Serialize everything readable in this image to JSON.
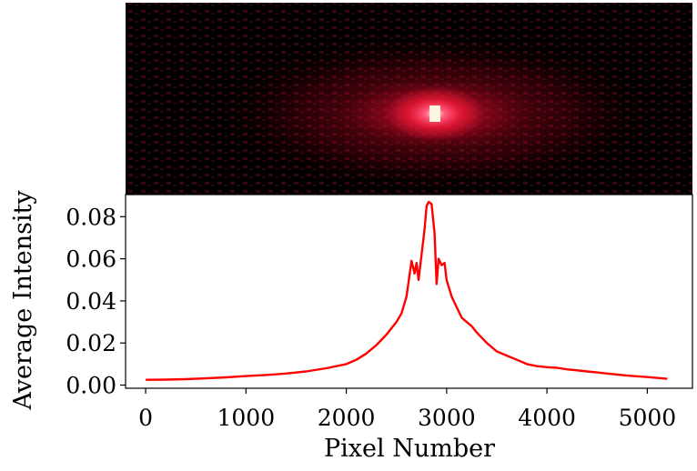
{
  "chart_data": [
    {
      "type": "image",
      "description_colormap": "black-to-red-to-white intensity",
      "colors": {
        "background": "#000000",
        "glow": "#ff1a3c",
        "center": "#fff4e0"
      }
    },
    {
      "type": "line",
      "xlabel": "Pixel Number",
      "ylabel": "Average Intensity",
      "xlim": [
        -200,
        5450
      ],
      "ylim": [
        -0.0015,
        0.0905
      ],
      "xticks": [
        0,
        1000,
        2000,
        3000,
        4000,
        5000
      ],
      "xtick_labels": [
        "0",
        "1000",
        "2000",
        "3000",
        "4000",
        "5000"
      ],
      "yticks": [
        0.0,
        0.02,
        0.04,
        0.06,
        0.08
      ],
      "ytick_labels": [
        "0.00",
        "0.02",
        "0.04",
        "0.06",
        "0.08"
      ],
      "grid": false,
      "series": [
        {
          "color": "#ff0000",
          "x": [
            0,
            200,
            400,
            600,
            800,
            1000,
            1200,
            1400,
            1600,
            1800,
            2000,
            2100,
            2200,
            2300,
            2400,
            2450,
            2500,
            2550,
            2600,
            2650,
            2680,
            2700,
            2720,
            2750,
            2780,
            2800,
            2820,
            2850,
            2880,
            2900,
            2920,
            2950,
            2980,
            3000,
            3050,
            3100,
            3150,
            3200,
            3250,
            3300,
            3400,
            3500,
            3600,
            3700,
            3800,
            3900,
            4000,
            4100,
            4200,
            4300,
            4400,
            4500,
            4600,
            4800,
            5000,
            5200
          ],
          "y": [
            0.0025,
            0.0026,
            0.0028,
            0.0032,
            0.0037,
            0.0043,
            0.0048,
            0.0055,
            0.0065,
            0.008,
            0.01,
            0.012,
            0.015,
            0.019,
            0.024,
            0.027,
            0.03,
            0.034,
            0.042,
            0.059,
            0.053,
            0.058,
            0.05,
            0.062,
            0.074,
            0.085,
            0.087,
            0.086,
            0.072,
            0.048,
            0.06,
            0.057,
            0.058,
            0.05,
            0.042,
            0.037,
            0.032,
            0.03,
            0.028,
            0.025,
            0.02,
            0.016,
            0.014,
            0.012,
            0.01,
            0.009,
            0.0085,
            0.0082,
            0.0075,
            0.007,
            0.0065,
            0.006,
            0.0055,
            0.0045,
            0.0038,
            0.003
          ]
        }
      ]
    }
  ]
}
